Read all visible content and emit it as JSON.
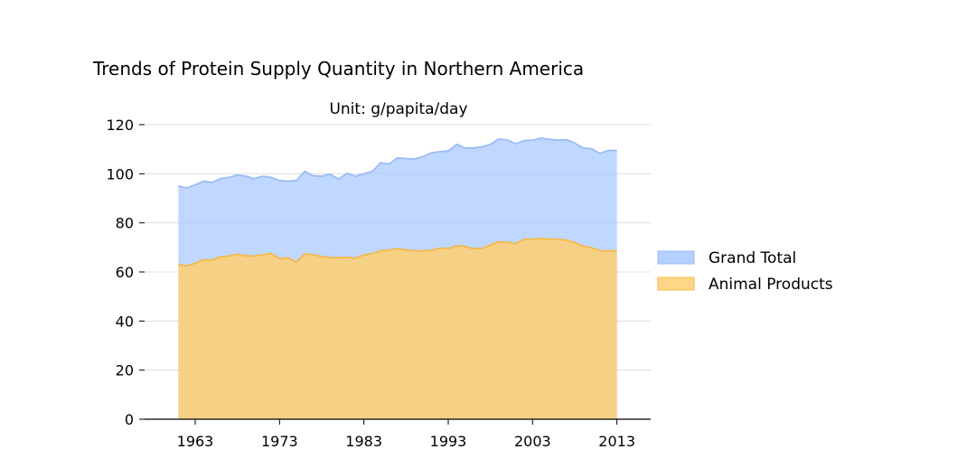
{
  "chart_data": {
    "type": "area",
    "title": "Trends of Protein Supply Quantity in Northern America",
    "subtitle": "Unit: g/papita/day",
    "xlabel": "",
    "ylabel": "",
    "xlim": [
      1957,
      2017
    ],
    "ylim": [
      0,
      120
    ],
    "x_ticks": [
      1963,
      1973,
      1983,
      1993,
      2003,
      2013
    ],
    "y_ticks": [
      0,
      20,
      40,
      60,
      80,
      100,
      120
    ],
    "grid": "horizontal",
    "legend_position": "right",
    "x": [
      1961,
      1962,
      1963,
      1964,
      1965,
      1966,
      1967,
      1968,
      1969,
      1970,
      1971,
      1972,
      1973,
      1974,
      1975,
      1976,
      1977,
      1978,
      1979,
      1980,
      1981,
      1982,
      1983,
      1984,
      1985,
      1986,
      1987,
      1988,
      1989,
      1990,
      1991,
      1992,
      1993,
      1994,
      1995,
      1996,
      1997,
      1998,
      1999,
      2000,
      2001,
      2002,
      2003,
      2004,
      2005,
      2006,
      2007,
      2008,
      2009,
      2010,
      2011,
      2012,
      2013
    ],
    "series": [
      {
        "name": "Grand Total",
        "color": "#a8c8ff",
        "line_color": "#9bbcf5",
        "values": [
          95.0,
          94.2,
          95.5,
          97.0,
          96.5,
          98.0,
          98.5,
          99.5,
          99.0,
          98.0,
          99.0,
          98.5,
          97.2,
          97.0,
          97.2,
          101.0,
          99.2,
          99.0,
          99.8,
          97.8,
          100.2,
          99.0,
          100.0,
          101.0,
          104.5,
          104.0,
          106.5,
          106.2,
          106.0,
          107.0,
          108.5,
          109.0,
          109.3,
          112.0,
          110.5,
          110.5,
          111.0,
          112.0,
          114.2,
          113.8,
          112.2,
          113.5,
          113.7,
          114.5,
          114.0,
          113.7,
          113.9,
          112.5,
          110.5,
          110.2,
          108.3,
          109.5,
          109.5
        ]
      },
      {
        "name": "Animal Products",
        "color": "#ffcf70",
        "line_color": "#f5b94a",
        "values": [
          63.0,
          62.5,
          63.5,
          65.0,
          64.8,
          66.2,
          66.5,
          67.3,
          66.6,
          66.5,
          67.0,
          67.5,
          65.4,
          65.8,
          64.0,
          67.4,
          67.0,
          66.3,
          65.9,
          65.8,
          66.0,
          65.6,
          66.9,
          67.4,
          68.6,
          68.9,
          69.5,
          68.9,
          68.6,
          68.6,
          68.8,
          69.7,
          69.5,
          70.7,
          70.4,
          69.5,
          69.6,
          71.0,
          72.3,
          72.0,
          71.6,
          73.3,
          73.4,
          73.7,
          73.4,
          73.3,
          73.0,
          72.0,
          70.5,
          69.9,
          68.6,
          68.6,
          68.6
        ]
      }
    ]
  }
}
